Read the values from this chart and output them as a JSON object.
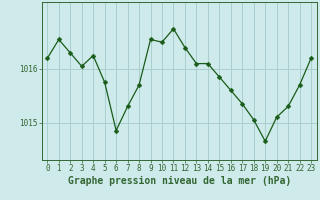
{
  "x": [
    0,
    1,
    2,
    3,
    4,
    5,
    6,
    7,
    8,
    9,
    10,
    11,
    12,
    13,
    14,
    15,
    16,
    17,
    18,
    19,
    20,
    21,
    22,
    23
  ],
  "y": [
    1016.2,
    1016.55,
    1016.3,
    1016.05,
    1016.25,
    1015.75,
    1014.85,
    1015.3,
    1015.7,
    1016.55,
    1016.5,
    1016.75,
    1016.4,
    1016.1,
    1016.1,
    1015.85,
    1015.6,
    1015.35,
    1015.05,
    1014.65,
    1015.1,
    1015.3,
    1015.7,
    1016.2
  ],
  "line_color": "#1a5c1a",
  "marker": "D",
  "marker_size": 2.5,
  "bg_color": "#ceeaea",
  "grid_color": "#aacfcf",
  "xlabel": "Graphe pression niveau de la mer (hPa)",
  "ytick_labels": [
    "1015",
    "1016"
  ],
  "ytick_values": [
    1015,
    1016
  ],
  "xtick_labels": [
    "0",
    "1",
    "2",
    "3",
    "4",
    "5",
    "6",
    "7",
    "8",
    "9",
    "10",
    "11",
    "12",
    "13",
    "14",
    "15",
    "16",
    "17",
    "18",
    "19",
    "20",
    "21",
    "22",
    "23"
  ],
  "ylim_min": 1014.3,
  "ylim_max": 1017.25,
  "xlim_min": -0.5,
  "xlim_max": 23.5,
  "axis_color": "#336633",
  "tick_fontsize": 5.5,
  "label_fontsize": 7.0
}
